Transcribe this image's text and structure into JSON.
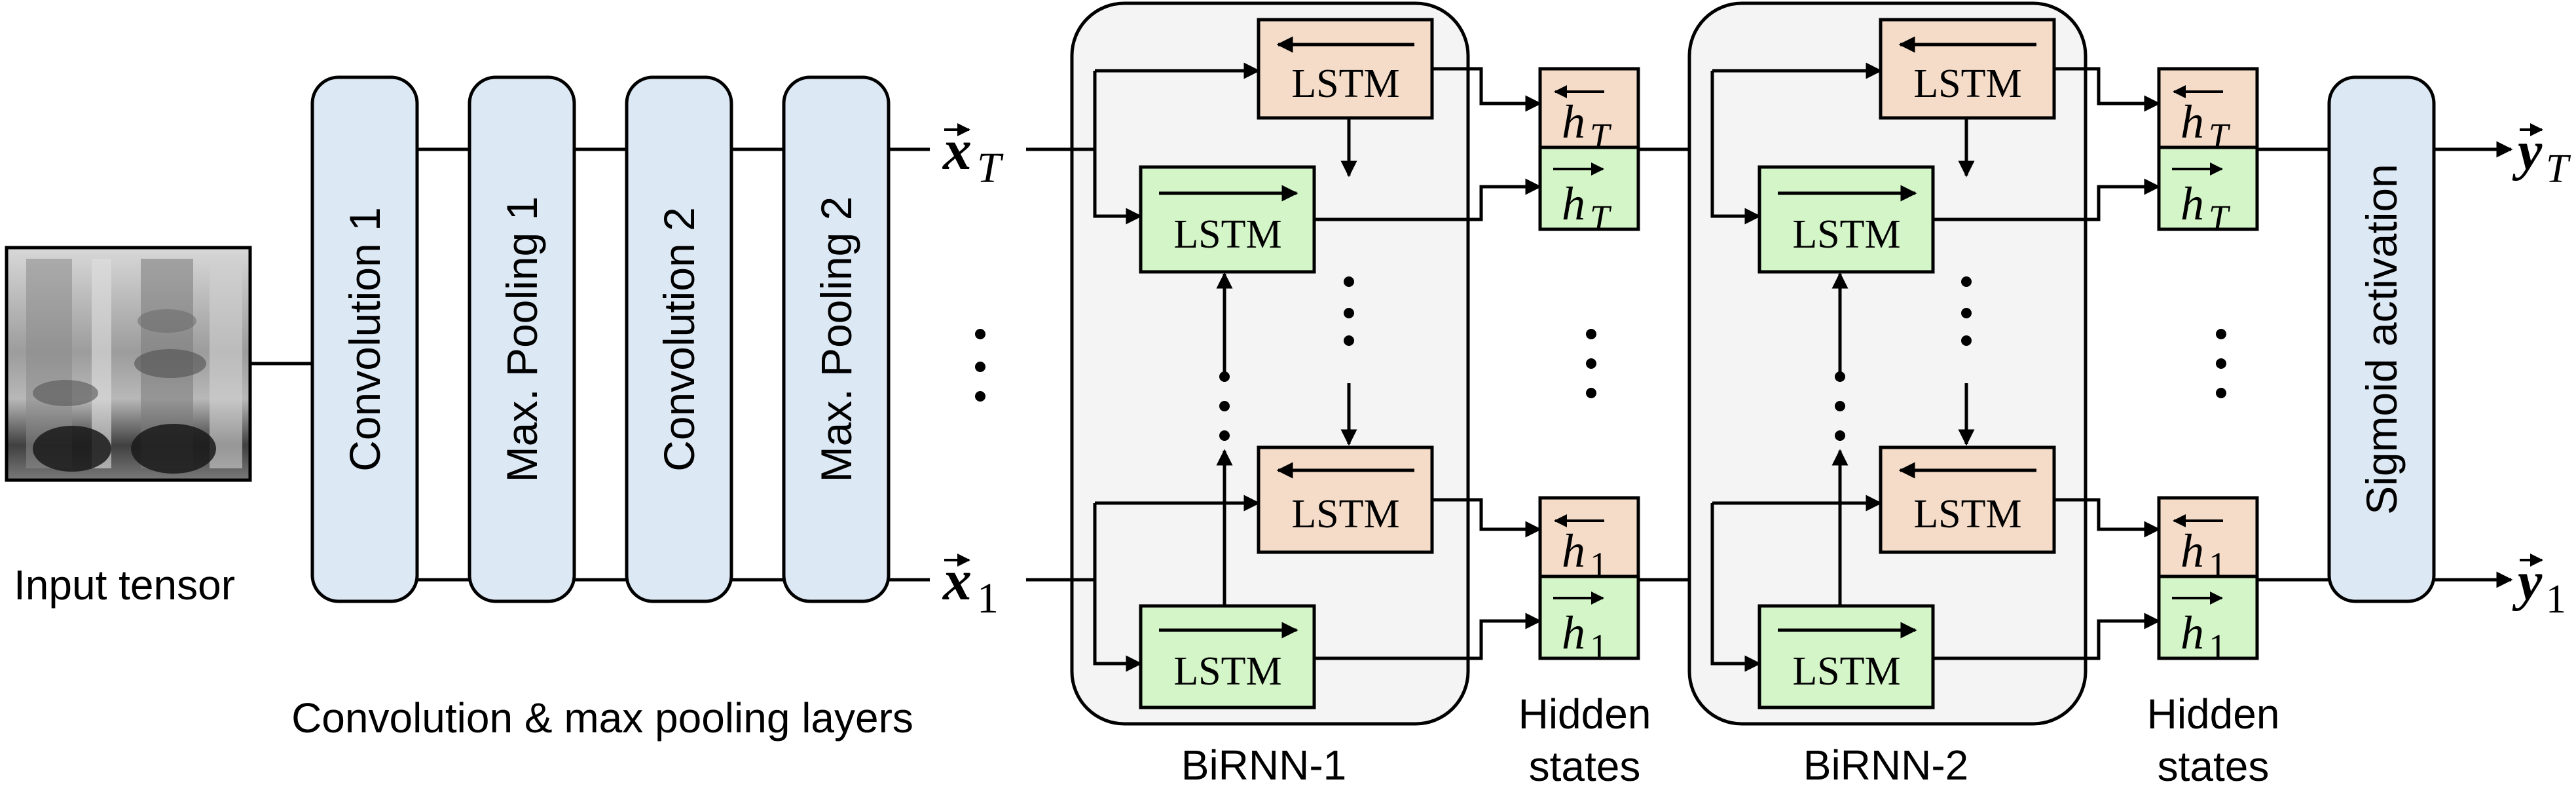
{
  "input": {
    "label": "Input tensor"
  },
  "cnn": {
    "blocks": [
      "Convolution 1",
      "Max. Pooling 1",
      "Convolution 2",
      "Max. Pooling 2"
    ],
    "caption": "Convolution & max pooling layers"
  },
  "sequence": {
    "x_top_base": "x",
    "x_top_sub": "T",
    "x_bottom_base": "x",
    "x_bottom_sub": "1",
    "y_top_base": "y",
    "y_top_sub": "T",
    "y_bottom_base": "y",
    "y_bottom_sub": "1"
  },
  "birnn1": {
    "label": "BiRNN-1"
  },
  "birnn2": {
    "label": "BiRNN-2"
  },
  "cell": {
    "label": "LSTM"
  },
  "hidden": {
    "base": "h",
    "sub_top": "T",
    "sub_bottom": "1",
    "label_line1": "Hidden",
    "label_line2": "states"
  },
  "output": {
    "label": "Sigmoid activation"
  }
}
